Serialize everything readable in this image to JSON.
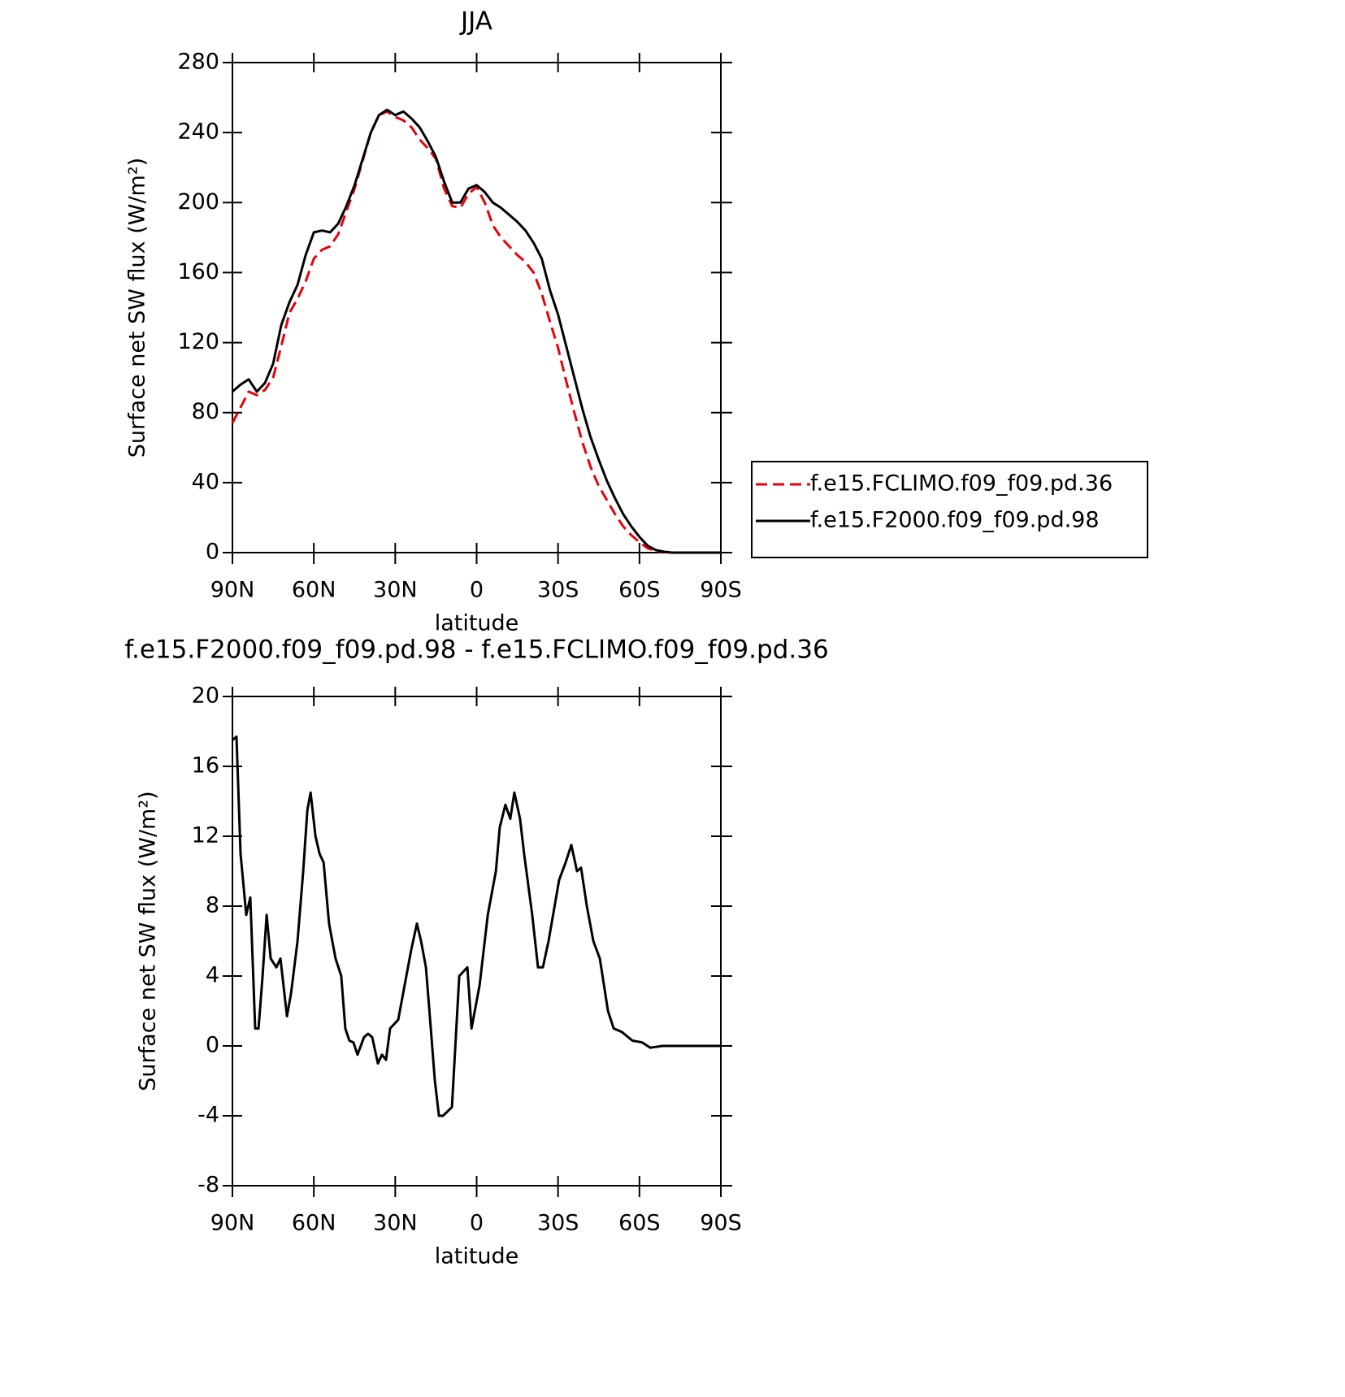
{
  "chart_data": [
    {
      "type": "line",
      "title": "JJA",
      "xlabel": "latitude",
      "ylabel": "Surface net SW flux (W/m²)",
      "x": [
        90,
        87,
        84,
        81,
        78,
        75,
        72,
        69,
        66,
        63,
        60,
        57,
        54,
        51,
        48,
        45,
        42,
        39,
        36,
        33,
        30,
        27,
        24,
        21,
        18,
        15,
        12,
        9,
        6,
        3,
        0,
        -3,
        -6,
        -9,
        -12,
        -15,
        -18,
        -21,
        -24,
        -27,
        -30,
        -33,
        -36,
        -39,
        -42,
        -45,
        -48,
        -51,
        -54,
        -57,
        -60,
        -63,
        -66,
        -69,
        -72,
        -75,
        -78,
        -81,
        -84,
        -87,
        -90
      ],
      "series": [
        {
          "name": "f.e15.FCLIMO.f09_f09.pd.36",
          "color": "#e8000b",
          "dash": true,
          "values": [
            74,
            83,
            92,
            90,
            93,
            100,
            118,
            137,
            145,
            155,
            168,
            173,
            175,
            182,
            195,
            208,
            224,
            240,
            250,
            252,
            249,
            247,
            243,
            236,
            231,
            225,
            208,
            198,
            197,
            205,
            209,
            200,
            187,
            180,
            175,
            170,
            166,
            160,
            148,
            132,
            117,
            98,
            80,
            63,
            49,
            38,
            30,
            22,
            15,
            10,
            6,
            2.5,
            1,
            0.3,
            0,
            0,
            0,
            0,
            0,
            0,
            0
          ]
        },
        {
          "name": "f.e15.F2000.f09_f09.pd.98",
          "color": "#000000",
          "dash": false,
          "values": [
            92,
            96,
            99,
            92,
            97,
            108,
            130,
            143,
            153,
            170,
            183,
            184,
            183,
            188,
            198,
            210,
            225,
            240,
            250,
            253,
            250,
            252,
            248,
            243,
            235,
            226,
            212,
            200,
            200,
            208,
            210,
            206,
            200,
            197,
            193,
            189,
            184,
            177,
            168,
            150,
            136,
            118,
            100,
            82,
            66,
            53,
            41,
            31,
            22,
            15,
            9,
            4,
            1.5,
            0.5,
            0,
            0,
            0,
            0,
            0,
            0,
            0
          ]
        }
      ],
      "xlim": [
        90,
        -90
      ],
      "xticks": [
        {
          "value": 90,
          "label": "90N"
        },
        {
          "value": 60,
          "label": "60N"
        },
        {
          "value": 30,
          "label": "30N"
        },
        0,
        {
          "value": -30,
          "label": "30S"
        },
        {
          "value": -60,
          "label": "60S"
        },
        {
          "value": -90,
          "label": "90S"
        }
      ],
      "ylim": [
        0,
        280
      ],
      "yticks": [
        0,
        40,
        80,
        120,
        160,
        200,
        240,
        280
      ],
      "legend": "right"
    },
    {
      "type": "line",
      "title": "f.e15.F2000.f09_f09.pd.98 - f.e15.FCLIMO.f09_f09.pd.36",
      "xlabel": "latitude",
      "ylabel": "Surface net SW flux (W/m²)",
      "x": [
        90,
        88.5,
        87,
        84.9,
        83.4,
        81.6,
        80.4,
        78.9,
        77.4,
        75.9,
        73.8,
        72.3,
        69.9,
        68.4,
        66,
        63.9,
        62.4,
        61.2,
        59.4,
        57.9,
        56.4,
        54.4,
        52,
        49.9,
        48.4,
        46.9,
        45.4,
        43.9,
        41.5,
        40,
        38.5,
        36.4,
        34.9,
        33.4,
        31.9,
        28.9,
        25.9,
        24.1,
        22,
        20.5,
        18.7,
        16.9,
        15.4,
        13.9,
        12.4,
        9.1,
        6.4,
        3.4,
        1.9,
        -1.1,
        -4.1,
        -7.1,
        -8.5,
        -10.6,
        -12.4,
        -13.9,
        -16,
        -17.5,
        -20.5,
        -22.6,
        -24.4,
        -26.5,
        -30.4,
        -32.8,
        -34.9,
        -37,
        -38.5,
        -40.6,
        -43,
        -45.4,
        -48.4,
        -50.5,
        -53.5,
        -57.4,
        -61,
        -64,
        -68.5,
        -79,
        -90
      ],
      "values": [
        17.5,
        17.7,
        11,
        7.5,
        8.5,
        1,
        1,
        4,
        7.5,
        5,
        4.5,
        5,
        1.7,
        3,
        6,
        10,
        13.5,
        14.5,
        12,
        11,
        10.5,
        7,
        5,
        4,
        1,
        0.3,
        0.2,
        -0.5,
        0.5,
        0.7,
        0.5,
        -1,
        -0.5,
        -0.8,
        1,
        1.5,
        4,
        5.5,
        7,
        6,
        4.5,
        1,
        -2,
        -4,
        -4,
        -3.5,
        4,
        4.5,
        1,
        3.5,
        7.5,
        10,
        12.5,
        13.8,
        13,
        14.5,
        13,
        11,
        7.5,
        4.5,
        4.5,
        6,
        9.5,
        10.5,
        11.5,
        10,
        10.2,
        8,
        6,
        5,
        2,
        1,
        0.8,
        0.3,
        0.2,
        -0.1,
        0,
        0,
        0
      ],
      "color": "#000000",
      "xlim": [
        90,
        -90
      ],
      "xticks": [
        {
          "value": 90,
          "label": "90N"
        },
        {
          "value": 60,
          "label": "60N"
        },
        {
          "value": 30,
          "label": "30N"
        },
        0,
        {
          "value": -30,
          "label": "30S"
        },
        {
          "value": -60,
          "label": "60S"
        },
        {
          "value": -90,
          "label": "90S"
        }
      ],
      "ylim": [
        -8,
        20
      ],
      "yticks": [
        -8,
        -4,
        0,
        4,
        8,
        12,
        16,
        20
      ]
    }
  ]
}
